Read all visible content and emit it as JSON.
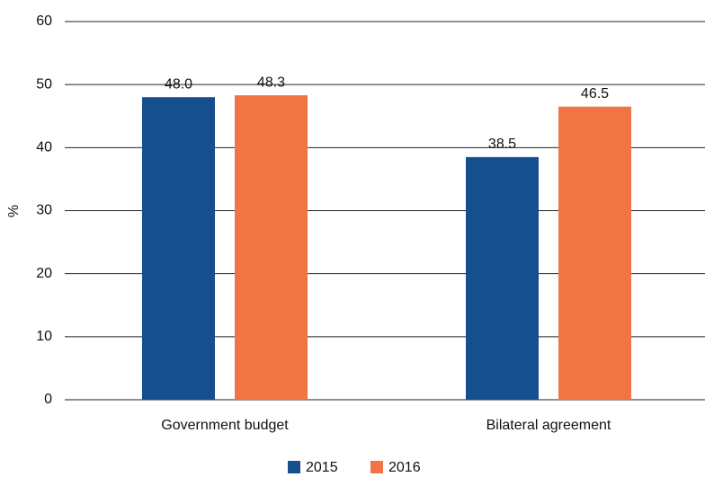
{
  "chart_data": {
    "type": "bar",
    "y_label": "%",
    "categories": [
      "Government budget",
      "Bilateral agreement"
    ],
    "series": [
      {
        "name": "2015",
        "color": "#154f8e",
        "values": [
          48,
          38.5
        ],
        "value_labels": [
          "48.0",
          "38.5"
        ]
      },
      {
        "name": "2016",
        "color": "#f07444",
        "values": [
          48.3,
          46.5
        ],
        "value_labels": [
          "48.3",
          "46.5"
        ]
      }
    ],
    "ylim": [
      0,
      60
    ],
    "yticks": [
      0,
      10,
      20,
      30,
      40,
      50,
      60
    ],
    "grid": true,
    "legend": "bottom"
  }
}
